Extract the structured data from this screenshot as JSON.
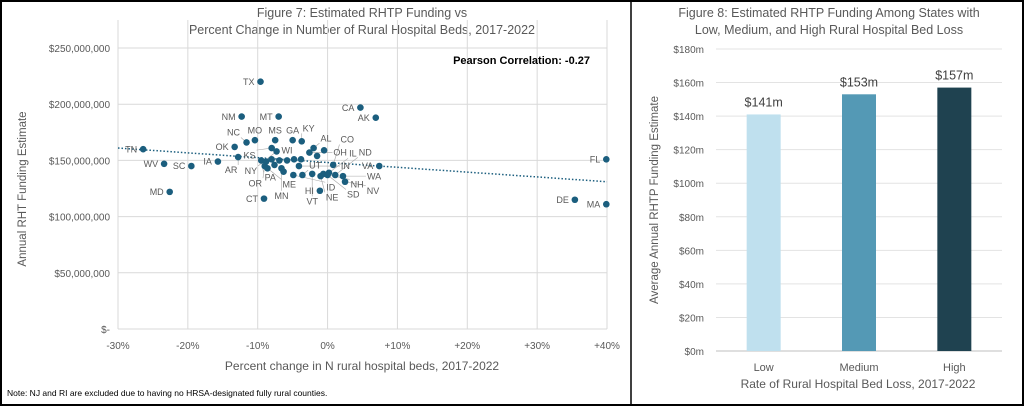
{
  "note": "Note: NJ and RI are excluded due to having no HRSA-designated fully rural counties.",
  "chart_data": [
    {
      "type": "scatter",
      "title_line1": "Figure 7: Estimated RHTP Funding vs",
      "title_line2": "Percent Change in Number of Rural Hospital Beds, 2017-2022",
      "xlabel": "Percent change in N rural hospital beds, 2017-2022",
      "ylabel": "Annual RHT Funding Estimate",
      "annotation": "Pearson Correlation: -0.27",
      "xlim": [
        -30,
        40
      ],
      "ylim": [
        0,
        250000000
      ],
      "x_ticks": [
        -30,
        -20,
        -10,
        0,
        10,
        20,
        30,
        40
      ],
      "x_tick_labels": [
        "-30%",
        "-20%",
        "-10%",
        "0%",
        "+10%",
        "+20%",
        "+30%",
        "+40%"
      ],
      "y_ticks": [
        0,
        50000000,
        100000000,
        150000000,
        200000000,
        250000000
      ],
      "y_tick_labels": [
        "$-",
        "$50,000,000",
        "$100,000,000",
        "$150,000,000",
        "$200,000,000",
        "$250,000,000"
      ],
      "grid": true,
      "point_color": "#1b5e7e",
      "trendline": {
        "x": [
          -30,
          40
        ],
        "y": [
          161000000,
          131000000
        ],
        "style": "dotted",
        "color": "#1b5e7e"
      },
      "points": [
        {
          "label": "TX",
          "x": -9.6,
          "y": 220000000
        },
        {
          "label": "CA",
          "x": 4.7,
          "y": 197000000
        },
        {
          "label": "AK",
          "x": 6.9,
          "y": 188000000
        },
        {
          "label": "NM",
          "x": -12.3,
          "y": 189000000
        },
        {
          "label": "MT",
          "x": -7.0,
          "y": 189000000
        },
        {
          "label": "TN",
          "x": -26.4,
          "y": 160000000
        },
        {
          "label": "WV",
          "x": -23.4,
          "y": 147000000
        },
        {
          "label": "SC",
          "x": -19.5,
          "y": 145000000
        },
        {
          "label": "IA",
          "x": -15.7,
          "y": 149000000
        },
        {
          "label": "MD",
          "x": -22.6,
          "y": 122000000
        },
        {
          "label": "CT",
          "x": -9.1,
          "y": 116000000
        },
        {
          "label": "HI",
          "x": -1.1,
          "y": 123000000
        },
        {
          "label": "VA",
          "x": 7.4,
          "y": 145000000
        },
        {
          "label": "FL",
          "x": 39.9,
          "y": 151000000
        },
        {
          "label": "DE",
          "x": 35.4,
          "y": 115000000
        },
        {
          "label": "MA",
          "x": 39.9,
          "y": 111000000
        },
        {
          "label": "OK",
          "x": -13.3,
          "y": 162000000
        },
        {
          "label": "NC",
          "x": -11.6,
          "y": 166000000
        },
        {
          "label": "MO",
          "x": -10.4,
          "y": 168000000
        },
        {
          "label": "MS",
          "x": -7.5,
          "y": 168000000
        },
        {
          "label": "GA",
          "x": -5.0,
          "y": 168000000
        },
        {
          "label": "KY",
          "x": -3.7,
          "y": 167000000
        },
        {
          "label": "KS",
          "x": -8.0,
          "y": 161000000
        },
        {
          "label": "NY",
          "x": -7.3,
          "y": 158000000
        },
        {
          "label": "AR",
          "x": -12.8,
          "y": 153000000
        },
        {
          "label": "AL",
          "x": -2.0,
          "y": 161000000
        },
        {
          "label": "OH",
          "x": -2.6,
          "y": 157000000
        },
        {
          "label": "",
          "x": -0.5,
          "y": 159000000
        },
        {
          "label": "",
          "x": -1.5,
          "y": 154000000
        },
        {
          "label": "PA",
          "x": -9.5,
          "y": 150000000
        },
        {
          "label": "",
          "x": -8.8,
          "y": 149000000
        },
        {
          "label": "",
          "x": -8.0,
          "y": 151000000
        },
        {
          "label": "",
          "x": -6.9,
          "y": 150000000
        },
        {
          "label": "WI",
          "x": -5.8,
          "y": 150000000
        },
        {
          "label": "",
          "x": -4.8,
          "y": 151000000
        },
        {
          "label": "",
          "x": -3.8,
          "y": 151000000
        },
        {
          "label": "OR",
          "x": -9.0,
          "y": 145000000
        },
        {
          "label": "ME",
          "x": -8.6,
          "y": 143000000
        },
        {
          "label": "",
          "x": -7.6,
          "y": 146000000
        },
        {
          "label": "MN",
          "x": -6.6,
          "y": 143000000
        },
        {
          "label": "",
          "x": -6.3,
          "y": 140000000
        },
        {
          "label": "IN",
          "x": -4.1,
          "y": 145000000
        },
        {
          "label": "ID",
          "x": -4.9,
          "y": 137000000
        },
        {
          "label": "UT",
          "x": -3.6,
          "y": 137000000
        },
        {
          "label": "VT",
          "x": -2.2,
          "y": 138000000
        },
        {
          "label": "NH",
          "x": -0.6,
          "y": 138000000
        },
        {
          "label": "IL",
          "x": 0.2,
          "y": 139000000
        },
        {
          "label": "CO",
          "x": 0.8,
          "y": 146000000
        },
        {
          "label": "NE",
          "x": -1.0,
          "y": 136000000
        },
        {
          "label": "SD",
          "x": 0.0,
          "y": 137000000
        },
        {
          "label": "ND",
          "x": 1.1,
          "y": 137000000
        },
        {
          "label": "WA",
          "x": 2.2,
          "y": 136000000
        },
        {
          "label": "NV",
          "x": 2.5,
          "y": 131000000
        }
      ]
    },
    {
      "type": "bar",
      "title_line1": "Figure 8: Estimated RHTP Funding Among States with",
      "title_line2": "Low, Medium, and High Rural Hospital Bed Loss",
      "xlabel": "Rate of Rural Hospital Bed Loss, 2017-2022",
      "ylabel": "Average Annual RHTP Funding Estimate",
      "categories": [
        "Low",
        "Medium",
        "High"
      ],
      "values": [
        141,
        153,
        157
      ],
      "data_labels": [
        "$141m",
        "$153m",
        "$157m"
      ],
      "colors": [
        "#bfe0ee",
        "#5499b5",
        "#1f4250"
      ],
      "ylim": [
        0,
        180
      ],
      "y_ticks": [
        0,
        20,
        40,
        60,
        80,
        100,
        120,
        140,
        160,
        180
      ],
      "y_tick_labels": [
        "$0m",
        "$20m",
        "$40m",
        "$60m",
        "$80m",
        "$100m",
        "$120m",
        "$140m",
        "$160m",
        "$180m"
      ],
      "grid": true
    }
  ]
}
